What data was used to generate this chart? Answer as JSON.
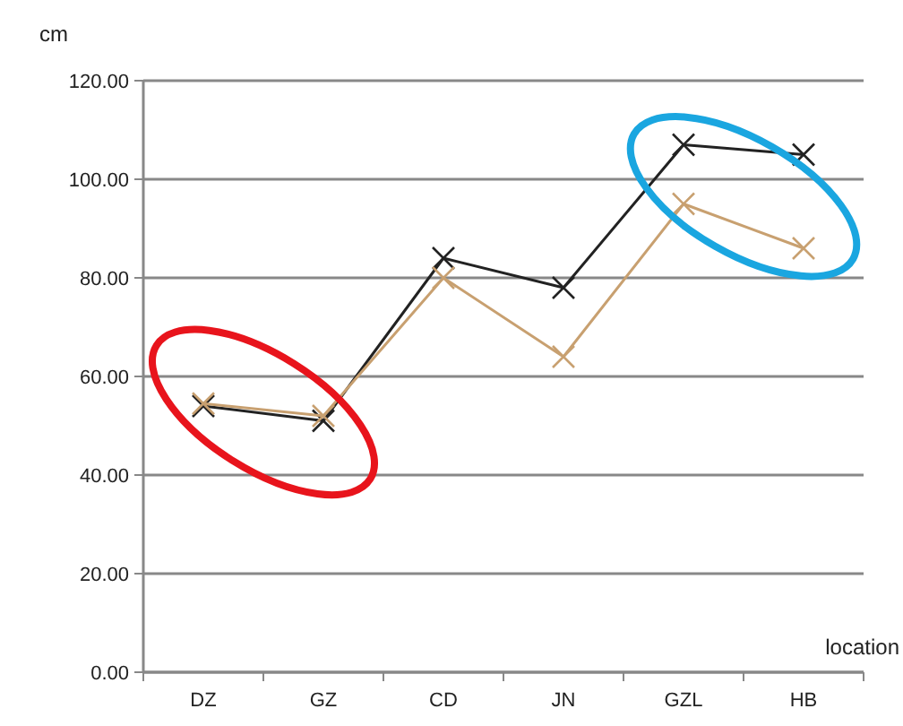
{
  "chart_data": {
    "type": "line",
    "ylabel": "cm",
    "xlabel": "location",
    "categories": [
      "DZ",
      "GZ",
      "CD",
      "JN",
      "GZL",
      "HB"
    ],
    "series": [
      {
        "color": "#222222",
        "marker": "cross",
        "values": [
          54,
          51,
          84,
          78,
          107,
          105
        ]
      },
      {
        "color": "#c8a070",
        "marker": "cross",
        "values": [
          54.5,
          52,
          80,
          64,
          95,
          86
        ]
      }
    ],
    "ylim": [
      0,
      120
    ],
    "yticks": [
      {
        "value": 0,
        "label": "0.00"
      },
      {
        "value": 20,
        "label": "20.00"
      },
      {
        "value": 40,
        "label": "40.00"
      },
      {
        "value": 60,
        "label": "60.00"
      },
      {
        "value": 80,
        "label": "80.00"
      },
      {
        "value": 100,
        "label": "100.00"
      },
      {
        "value": 120,
        "label": "120.00"
      }
    ],
    "grid": "y"
  }
}
